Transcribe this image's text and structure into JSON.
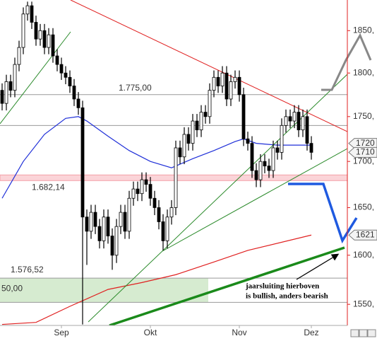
{
  "chart_data": {
    "type": "candlestick",
    "categories": [
      null,
      null,
      null,
      null,
      null,
      null,
      null,
      null,
      null,
      null,
      null,
      null,
      null,
      null,
      "Sep",
      null,
      null,
      null,
      null,
      null,
      null,
      null,
      null,
      null,
      null,
      null,
      null,
      null,
      null,
      null,
      null,
      null,
      null,
      null,
      null,
      "Okt",
      null,
      null,
      null,
      null,
      null,
      null,
      null,
      null,
      null,
      null,
      null,
      null,
      null,
      null,
      null,
      null,
      null,
      null,
      null,
      null,
      "Nov",
      null,
      null,
      null,
      null,
      null,
      null,
      null,
      null,
      null,
      null,
      null,
      null,
      null,
      null,
      null,
      null,
      "Dez"
    ],
    "open": [
      1780,
      1765,
      1790,
      1780,
      1810,
      1830,
      1870,
      1880,
      1860,
      1840,
      1850,
      1830,
      1845,
      1820,
      1810,
      1800,
      1795,
      1785,
      1770,
      1760,
      1640,
      1625,
      1645,
      1630,
      1615,
      1640,
      1620,
      1600,
      1630,
      1645,
      1625,
      1660,
      1670,
      1665,
      1680,
      1675,
      1660,
      1650,
      1635,
      1615,
      1640,
      1650,
      1715,
      1705,
      1730,
      1720,
      1745,
      1735,
      1755,
      1750,
      1780,
      1795,
      1785,
      1800,
      1770,
      1790,
      1795,
      1775,
      1725,
      1720,
      1690,
      1680,
      1700,
      1695,
      1690,
      1715,
      1710,
      1740,
      1750,
      1745,
      1755,
      1735,
      1750,
      1720
    ],
    "high": [
      1788,
      1798,
      1798,
      1818,
      1838,
      1878,
      1885,
      1885,
      1868,
      1858,
      1858,
      1853,
      1853,
      1828,
      1818,
      1808,
      1803,
      1793,
      1778,
      1768,
      1648,
      1653,
      1653,
      1638,
      1648,
      1648,
      1628,
      1638,
      1653,
      1653,
      1668,
      1678,
      1678,
      1688,
      1688,
      1683,
      1668,
      1658,
      1643,
      1648,
      1658,
      1723,
      1723,
      1738,
      1738,
      1753,
      1753,
      1763,
      1763,
      1788,
      1803,
      1803,
      1808,
      1808,
      1798,
      1803,
      1803,
      1783,
      1733,
      1728,
      1698,
      1708,
      1708,
      1703,
      1723,
      1723,
      1748,
      1758,
      1758,
      1763,
      1763,
      1758,
      1758,
      1728
    ],
    "low": [
      1757,
      1757,
      1772,
      1772,
      1802,
      1822,
      1862,
      1852,
      1832,
      1832,
      1822,
      1822,
      1812,
      1802,
      1792,
      1787,
      1777,
      1762,
      1752,
      1530,
      1590,
      1617,
      1622,
      1607,
      1607,
      1612,
      1585,
      1592,
      1622,
      1617,
      1617,
      1652,
      1657,
      1657,
      1667,
      1652,
      1642,
      1627,
      1605,
      1607,
      1632,
      1642,
      1697,
      1697,
      1712,
      1712,
      1727,
      1727,
      1742,
      1742,
      1772,
      1777,
      1777,
      1762,
      1762,
      1782,
      1767,
      1717,
      1712,
      1682,
      1672,
      1672,
      1687,
      1682,
      1682,
      1702,
      1702,
      1732,
      1737,
      1737,
      1727,
      1727,
      1712,
      1702
    ],
    "close": [
      1765,
      1790,
      1780,
      1810,
      1830,
      1870,
      1880,
      1860,
      1840,
      1850,
      1830,
      1845,
      1820,
      1810,
      1800,
      1795,
      1785,
      1770,
      1760,
      1640,
      1625,
      1645,
      1630,
      1615,
      1640,
      1620,
      1600,
      1630,
      1645,
      1625,
      1660,
      1670,
      1665,
      1680,
      1675,
      1660,
      1650,
      1635,
      1615,
      1640,
      1650,
      1715,
      1705,
      1730,
      1720,
      1745,
      1735,
      1755,
      1750,
      1780,
      1795,
      1785,
      1800,
      1770,
      1790,
      1795,
      1775,
      1725,
      1720,
      1690,
      1680,
      1700,
      1695,
      1690,
      1715,
      1710,
      1740,
      1750,
      1745,
      1755,
      1735,
      1750,
      1720,
      1710
    ],
    "up_color": "#ffffff",
    "down_color": "#000000",
    "lines": [
      {
        "color": "#1f2fd8",
        "x": [
          0,
          5,
          10,
          15,
          18,
          20,
          25,
          30,
          35,
          40,
          45,
          50,
          55,
          57,
          60,
          65,
          70,
          73
        ],
        "values": [
          1660,
          1700,
          1730,
          1748,
          1750,
          1745,
          1728,
          1712,
          1700,
          1693,
          1703,
          1712,
          1722,
          1725,
          1720,
          1718,
          1718,
          1718
        ]
      },
      {
        "color": "#e02020",
        "x": [
          0,
          8,
          16,
          25,
          33,
          41,
          50,
          58,
          73
        ],
        "values": [
          1530,
          1532,
          1548,
          1565,
          1572,
          1580,
          1593,
          1605,
          1621
        ]
      }
    ],
    "ylim": [
      1529,
      1887
    ],
    "log_scale": true,
    "yticks": [
      {
        "value": 1550,
        "label": "1550,"
      },
      {
        "value": 1600,
        "label": "1600,"
      },
      {
        "value": 1650,
        "label": "1650,"
      },
      {
        "value": 1700,
        "label": "1700,"
      },
      {
        "value": 1750,
        "label": "1750,"
      },
      {
        "value": 1800,
        "label": "1800,"
      },
      {
        "value": 1850,
        "label": "1850,"
      }
    ],
    "levels": [
      {
        "value": 1775,
        "label": "1.775,00",
        "color": "#999999"
      },
      {
        "value": 1740,
        "color": "#999999"
      },
      {
        "value": 1682.14,
        "label": "1.682,14",
        "color": "#f4a0a8"
      },
      {
        "value": 1576.52,
        "label": "1.576,52",
        "color": "#999999"
      },
      {
        "value": 1552,
        "color": "#999999"
      }
    ],
    "zone": [
      1552,
      1576.52
    ],
    "zone_label": "50,00",
    "price_tags": [
      1720,
      1710,
      1621
    ],
    "annotation": [
      "jaarsluiting hierboven",
      "is bullish, anders bearish"
    ]
  }
}
